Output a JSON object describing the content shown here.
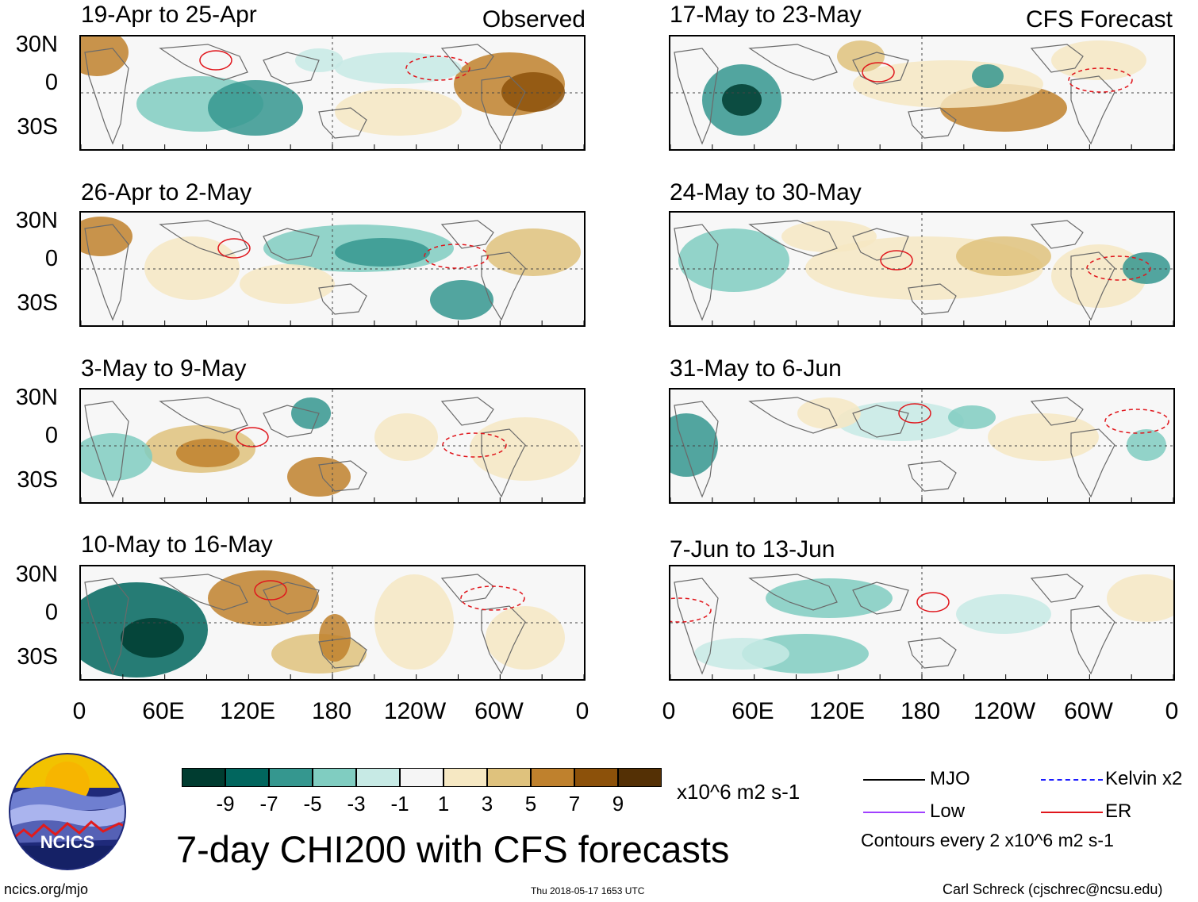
{
  "title": "7-day CHI200 with CFS forecasts",
  "observed_label": "Observed",
  "forecast_label": "CFS Forecast",
  "panels_left": [
    {
      "period": "19-Apr to 25-Apr"
    },
    {
      "period": "26-Apr to 2-May"
    },
    {
      "period": "3-May to 9-May"
    },
    {
      "period": "10-May to 16-May"
    }
  ],
  "panels_right": [
    {
      "period": "17-May to 23-May"
    },
    {
      "period": "24-May to 30-May"
    },
    {
      "period": "31-May to 6-Jun"
    },
    {
      "period": "7-Jun to 13-Jun"
    }
  ],
  "lat_labels": [
    "30N",
    "0",
    "30S"
  ],
  "lon_labels": [
    "0",
    "60E",
    "120E",
    "180",
    "120W",
    "60W",
    "0"
  ],
  "colorbar": {
    "labels": [
      "-9",
      "-7",
      "-5",
      "-3",
      "-1",
      "1",
      "3",
      "5",
      "7",
      "9"
    ],
    "colors": [
      "#003c30",
      "#01665e",
      "#35978f",
      "#80cdc1",
      "#c7eae5",
      "#f5f5f5",
      "#f6e8c3",
      "#dfc27d",
      "#bf812d",
      "#8c510a",
      "#543005"
    ],
    "units": "x10^6 m2 s-1"
  },
  "logo": {
    "text": "NCICS"
  },
  "legend": {
    "mjo": "MJO",
    "kelvin": "Kelvin x2",
    "low": "Low",
    "er": "ER",
    "note": "Contours every 2 x10^6 m2 s-1",
    "colors": {
      "mjo": "#000000",
      "kelvin": "#1a1aff",
      "low": "#a040ff",
      "er": "#e0161c"
    }
  },
  "footer": {
    "url": "ncics.org/mjo",
    "timestamp": "Thu 2018-05-17 1653 UTC",
    "author": "Carl Schreck (cjschrec@ncsu.edu)"
  }
}
